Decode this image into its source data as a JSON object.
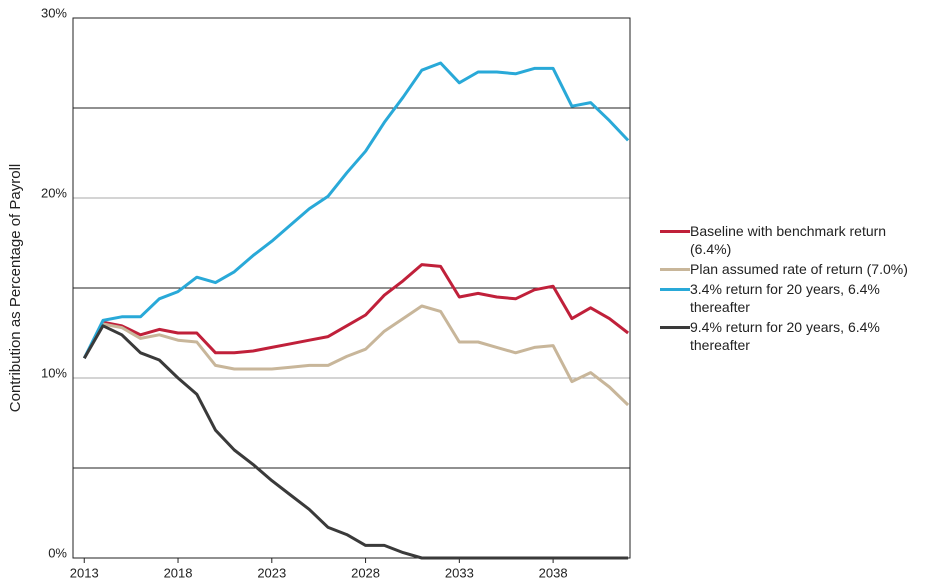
{
  "chart_data": {
    "type": "line",
    "y_label": "Contribution as Percentage of Payroll",
    "x": [
      2013,
      2014,
      2015,
      2016,
      2017,
      2018,
      2019,
      2020,
      2021,
      2022,
      2023,
      2024,
      2025,
      2026,
      2027,
      2028,
      2029,
      2030,
      2031,
      2032,
      2033,
      2034,
      2035,
      2036,
      2037,
      2038,
      2039,
      2040,
      2041,
      2042
    ],
    "xlim": [
      2012.4,
      2042.1
    ],
    "xticks": [
      2013,
      2018,
      2023,
      2028,
      2033,
      2038
    ],
    "ylim": [
      0,
      30
    ],
    "yticks": [
      {
        "value": 0,
        "label": "0%"
      },
      {
        "value": 10,
        "label": "10%"
      },
      {
        "value": 20,
        "label": "20%"
      },
      {
        "value": 30,
        "label": "30%"
      }
    ],
    "grid": true,
    "dark_grid": [
      5,
      15,
      25
    ],
    "legend": "right",
    "series": [
      {
        "name": "Baseline with benchmark return (6.4%)",
        "color": "#c0203a",
        "values": [
          11.1,
          13.1,
          12.9,
          12.4,
          12.7,
          12.5,
          12.5,
          11.4,
          11.4,
          11.5,
          11.7,
          11.9,
          12.1,
          12.3,
          12.9,
          13.5,
          14.6,
          15.4,
          16.3,
          16.2,
          14.5,
          14.7,
          14.5,
          14.4,
          14.9,
          15.1,
          13.3,
          13.9,
          13.3,
          12.5
        ]
      },
      {
        "name": "Plan assumed rate of return (7.0%)",
        "color": "#c8b69a",
        "values": [
          11.1,
          13.0,
          12.8,
          12.2,
          12.4,
          12.1,
          12.0,
          10.7,
          10.5,
          10.5,
          10.5,
          10.6,
          10.7,
          10.7,
          11.2,
          11.6,
          12.6,
          13.3,
          14.0,
          13.7,
          12.0,
          12.0,
          11.7,
          11.4,
          11.7,
          11.8,
          9.8,
          10.3,
          9.5,
          8.5
        ]
      },
      {
        "name": "3.4% return for 20 years, 6.4% thereafter",
        "color": "#29a9d8",
        "values": [
          11.1,
          13.2,
          13.4,
          13.4,
          14.4,
          14.8,
          15.6,
          15.3,
          15.9,
          16.8,
          17.6,
          18.5,
          19.4,
          20.1,
          21.4,
          22.6,
          24.2,
          25.6,
          27.1,
          27.5,
          26.4,
          27.0,
          27.0,
          26.9,
          27.2,
          27.2,
          25.1,
          25.3,
          24.3,
          23.2
        ]
      },
      {
        "name": "9.4% return for 20 years, 6.4% thereafter",
        "color": "#3a3a3a",
        "values": [
          11.1,
          12.9,
          12.4,
          11.4,
          11.0,
          10.0,
          9.1,
          7.1,
          6.0,
          5.2,
          4.3,
          3.5,
          2.7,
          1.7,
          1.3,
          0.7,
          0.7,
          0.3,
          0,
          0,
          0,
          0,
          0,
          0,
          0,
          0,
          0,
          0,
          0,
          0
        ]
      }
    ]
  }
}
